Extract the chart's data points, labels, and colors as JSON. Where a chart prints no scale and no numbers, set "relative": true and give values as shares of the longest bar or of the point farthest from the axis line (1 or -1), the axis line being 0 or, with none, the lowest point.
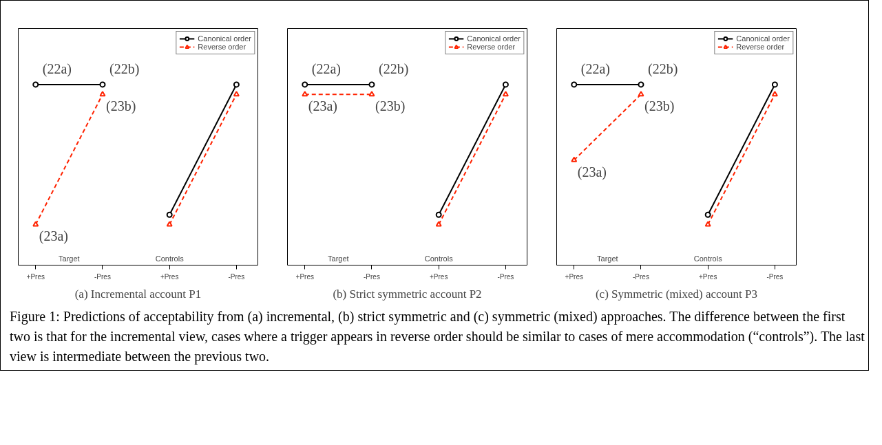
{
  "chart_data": [
    {
      "type": "line",
      "title": "(a) Incremental account P1",
      "relative": true,
      "categories": [
        "+Pres",
        "-Pres",
        "+Pres",
        "-Pres"
      ],
      "legend": "top right",
      "series": [
        {
          "name": "Canonical order",
          "color": "#000000",
          "marker": "circle",
          "line_style": "solid",
          "values": [
            1,
            1,
            null,
            null
          ]
        },
        {
          "color": "#000000",
          "marker": "circle",
          "line_style": "solid",
          "values": [
            null,
            null,
            0.07,
            1
          ]
        },
        {
          "name": "Reverse order",
          "color": "#ff2200",
          "marker": "triangle",
          "line_style": "dashed",
          "values": [
            0,
            0.93,
            null,
            null
          ]
        },
        {
          "color": "#ff2200",
          "marker": "triangle",
          "line_style": "dashed",
          "values": [
            null,
            null,
            0,
            0.93
          ]
        }
      ],
      "annotations": [
        {
          "text": "(22a)",
          "x": "+Pres",
          "y": 1
        },
        {
          "text": "(22b)",
          "x": "-Pres",
          "y": 1
        },
        {
          "text": "(23a)",
          "x": "+Pres",
          "y": 0
        },
        {
          "text": "(23b)",
          "x": "-Pres",
          "y": 0.93
        },
        "Target",
        "Controls"
      ]
    },
    {
      "type": "line",
      "title": "(b) Strict symmetric account P2",
      "relative": true,
      "categories": [
        "+Pres",
        "-Pres",
        "+Pres",
        "-Pres"
      ],
      "legend": "top right",
      "series": [
        {
          "name": "Canonical order",
          "color": "#000000",
          "marker": "circle",
          "line_style": "solid",
          "values": [
            1,
            1,
            null,
            null
          ]
        },
        {
          "color": "#000000",
          "marker": "circle",
          "line_style": "solid",
          "values": [
            null,
            null,
            0.07,
            1
          ]
        },
        {
          "name": "Reverse order",
          "color": "#ff2200",
          "marker": "triangle",
          "line_style": "dashed",
          "values": [
            0.93,
            0.93,
            null,
            null
          ]
        },
        {
          "color": "#ff2200",
          "marker": "triangle",
          "line_style": "dashed",
          "values": [
            null,
            null,
            0,
            0.93
          ]
        }
      ],
      "annotations": [
        {
          "text": "(22a)",
          "x": "+Pres",
          "y": 1
        },
        {
          "text": "(22b)",
          "x": "-Pres",
          "y": 1
        },
        {
          "text": "(23a)",
          "x": "+Pres",
          "y": 0.93
        },
        {
          "text": "(23b)",
          "x": "-Pres",
          "y": 0.93
        },
        "Target",
        "Controls"
      ]
    },
    {
      "type": "line",
      "title": "(c) Symmetric (mixed) account P3",
      "relative": true,
      "categories": [
        "+Pres",
        "-Pres",
        "+Pres",
        "-Pres"
      ],
      "legend": "top right",
      "series": [
        {
          "name": "Canonical order",
          "color": "#000000",
          "marker": "circle",
          "line_style": "solid",
          "values": [
            1,
            1,
            null,
            null
          ]
        },
        {
          "color": "#000000",
          "marker": "circle",
          "line_style": "solid",
          "values": [
            null,
            null,
            0.07,
            1
          ]
        },
        {
          "name": "Reverse order",
          "color": "#ff2200",
          "marker": "triangle",
          "line_style": "dashed",
          "values": [
            0.46,
            0.93,
            null,
            null
          ]
        },
        {
          "color": "#ff2200",
          "marker": "triangle",
          "line_style": "dashed",
          "values": [
            null,
            null,
            0,
            0.93
          ]
        }
      ],
      "annotations": [
        {
          "text": "(22a)",
          "x": "+Pres",
          "y": 1
        },
        {
          "text": "(22b)",
          "x": "-Pres",
          "y": 1
        },
        {
          "text": "(23a)",
          "x": "+Pres",
          "y": 0.46
        },
        {
          "text": "(23b)",
          "x": "-Pres",
          "y": 0.93
        },
        "Target",
        "Controls"
      ]
    },
    {
      "type": "other",
      "annotations": [
        "Figure 1: Predictions of acceptability from (a) incremental, (b) strict symmetric and (c) symmetric (mixed) approaches. The difference between the first two is that for the incremental view, cases where a trigger appears in reverse order should be similar to cases of mere accommodation (“controls”). The last view is intermediate between the previous two."
      ]
    }
  ]
}
